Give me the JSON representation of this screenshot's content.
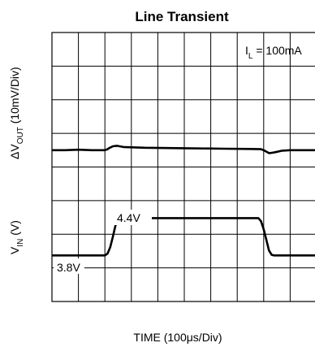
{
  "chart_data": {
    "type": "line",
    "title": "Line Transient",
    "xlabel": "TIME (100μs/Div)",
    "grid": true,
    "x_divisions": 10,
    "y_divisions": 8,
    "ylabel_top": {
      "base": "ΔV",
      "sub": "OUT",
      "rest": " (10mV/Div)"
    },
    "ylabel_bottom": {
      "base": "V",
      "sub": "IN",
      "rest": " (V)"
    },
    "condition": {
      "base": "I",
      "sub": "L",
      "rest": " = 100mA"
    },
    "annotations": {
      "high": "4.4V",
      "low": "3.8V"
    },
    "series": [
      {
        "role": "delta_vout",
        "x": [
          0,
          0.5,
          1.0,
          1.5,
          2.0,
          2.1,
          2.15,
          2.3,
          2.45,
          2.7,
          3.5,
          5.0,
          6.5,
          7.5,
          7.9,
          8.0,
          8.1,
          8.2,
          8.3,
          8.45,
          8.7,
          9.0,
          9.5,
          10.0
        ],
        "y": [
          0,
          0,
          0.1,
          0,
          0,
          0.2,
          0.4,
          0.8,
          0.9,
          0.65,
          0.5,
          0.4,
          0.3,
          0.25,
          0.2,
          0,
          -0.3,
          -0.6,
          -0.55,
          -0.4,
          -0.1,
          0,
          0,
          0
        ]
      },
      {
        "role": "vin",
        "x": [
          0,
          2.0,
          2.1,
          2.2,
          2.3,
          2.4,
          2.5,
          2.6,
          3.0,
          5.0,
          7.0,
          7.8,
          7.9,
          8.0,
          8.1,
          8.2,
          8.3,
          8.4,
          10.0
        ],
        "y": [
          3.8,
          3.8,
          3.83,
          3.93,
          4.1,
          4.28,
          4.37,
          4.4,
          4.4,
          4.4,
          4.4,
          4.4,
          4.35,
          4.22,
          4.05,
          3.88,
          3.81,
          3.8,
          3.8
        ]
      }
    ]
  }
}
